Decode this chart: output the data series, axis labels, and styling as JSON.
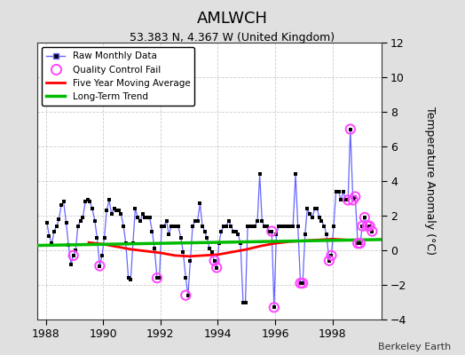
{
  "title": "AMLWCH",
  "subtitle": "53.383 N, 4.367 W (United Kingdom)",
  "ylabel": "Temperature Anomaly (°C)",
  "credit": "Berkeley Earth",
  "ylim": [
    -4,
    12
  ],
  "yticks": [
    -4,
    -2,
    0,
    2,
    4,
    6,
    8,
    10,
    12
  ],
  "xlim": [
    1987.7,
    1999.7
  ],
  "xticks": [
    1988,
    1990,
    1992,
    1994,
    1996,
    1998
  ],
  "bg_color": "#e0e0e0",
  "plot_bg_color": "#ffffff",
  "raw_color": "#6666ff",
  "raw_marker_color": "#000000",
  "qc_fail_color": "#ff44ff",
  "ma_color": "#ff0000",
  "trend_color": "#00bb00",
  "raw_x": [
    1988.04,
    1988.12,
    1988.21,
    1988.29,
    1988.38,
    1988.46,
    1988.54,
    1988.62,
    1988.71,
    1988.79,
    1988.88,
    1988.96,
    1989.04,
    1989.12,
    1989.21,
    1989.29,
    1989.38,
    1989.46,
    1989.54,
    1989.62,
    1989.71,
    1989.79,
    1989.88,
    1989.96,
    1990.04,
    1990.12,
    1990.21,
    1990.29,
    1990.38,
    1990.46,
    1990.54,
    1990.62,
    1990.71,
    1990.79,
    1990.88,
    1990.96,
    1991.04,
    1991.12,
    1991.21,
    1991.29,
    1991.38,
    1991.46,
    1991.54,
    1991.62,
    1991.71,
    1991.79,
    1991.88,
    1991.96,
    1992.04,
    1992.12,
    1992.21,
    1992.29,
    1992.38,
    1992.46,
    1992.54,
    1992.62,
    1992.71,
    1992.79,
    1992.88,
    1992.96,
    1993.04,
    1993.12,
    1993.21,
    1993.29,
    1993.38,
    1993.46,
    1993.54,
    1993.62,
    1993.71,
    1993.79,
    1993.88,
    1993.96,
    1994.04,
    1994.12,
    1994.21,
    1994.29,
    1994.38,
    1994.46,
    1994.54,
    1994.62,
    1994.71,
    1994.79,
    1994.88,
    1994.96,
    1995.04,
    1995.12,
    1995.21,
    1995.29,
    1995.38,
    1995.46,
    1995.54,
    1995.62,
    1995.71,
    1995.79,
    1995.88,
    1995.96,
    1996.04,
    1996.12,
    1996.21,
    1996.29,
    1996.38,
    1996.46,
    1996.54,
    1996.62,
    1996.71,
    1996.79,
    1996.88,
    1996.96,
    1997.04,
    1997.12,
    1997.21,
    1997.29,
    1997.38,
    1997.46,
    1997.54,
    1997.62,
    1997.71,
    1997.79,
    1997.88,
    1997.96,
    1998.04,
    1998.12,
    1998.21,
    1998.29,
    1998.38,
    1998.46,
    1998.54,
    1998.62,
    1998.71,
    1998.79,
    1998.88,
    1998.96,
    1999.04,
    1999.12,
    1999.21,
    1999.29,
    1999.38
  ],
  "raw_y": [
    1.6,
    0.8,
    0.4,
    1.1,
    1.4,
    1.8,
    2.6,
    2.8,
    1.6,
    0.3,
    -0.8,
    -0.3,
    0.0,
    1.4,
    1.7,
    1.9,
    2.8,
    2.9,
    2.8,
    2.4,
    1.7,
    0.7,
    -0.9,
    -0.3,
    0.7,
    2.3,
    2.9,
    2.1,
    2.4,
    2.3,
    2.3,
    2.1,
    1.4,
    0.4,
    -1.6,
    -1.7,
    0.4,
    2.4,
    1.9,
    1.7,
    2.1,
    1.9,
    1.9,
    1.9,
    1.1,
    0.1,
    -1.6,
    -1.6,
    1.4,
    1.4,
    1.7,
    0.9,
    1.4,
    1.4,
    1.4,
    1.4,
    0.7,
    -0.1,
    -1.6,
    -2.6,
    -0.6,
    1.4,
    1.7,
    1.7,
    2.7,
    1.4,
    1.1,
    0.7,
    0.1,
    -0.1,
    -0.6,
    -1.0,
    0.4,
    1.1,
    1.4,
    1.4,
    1.7,
    1.4,
    1.1,
    1.1,
    0.9,
    0.4,
    -3.0,
    -3.0,
    1.4,
    1.4,
    1.4,
    1.4,
    1.7,
    4.4,
    1.7,
    1.4,
    1.4,
    1.1,
    1.1,
    -3.3,
    0.9,
    1.4,
    1.4,
    1.4,
    1.4,
    1.4,
    1.4,
    1.4,
    4.4,
    1.4,
    -1.9,
    -1.9,
    0.9,
    2.4,
    2.1,
    1.9,
    2.4,
    2.4,
    1.9,
    1.7,
    1.4,
    0.9,
    -0.6,
    -0.3,
    1.4,
    3.4,
    3.4,
    2.9,
    3.4,
    2.9,
    2.9,
    7.0,
    2.9,
    3.1,
    0.4,
    0.4,
    1.4,
    1.9,
    1.4,
    1.4,
    1.1
  ],
  "qc_fail_x": [
    1988.96,
    1989.88,
    1991.88,
    1992.88,
    1993.88,
    1993.96,
    1995.88,
    1995.96,
    1996.88,
    1996.96,
    1997.88,
    1997.96,
    1998.54,
    1998.62,
    1998.71,
    1998.79,
    1998.88,
    1998.96,
    1999.04,
    1999.12,
    1999.21,
    1999.29,
    1999.38
  ],
  "qc_fail_y": [
    -0.3,
    -0.9,
    -1.6,
    -2.6,
    -0.6,
    -1.0,
    1.1,
    -3.3,
    -1.9,
    -1.9,
    -0.6,
    -0.3,
    2.9,
    7.0,
    2.9,
    3.1,
    0.4,
    0.4,
    1.4,
    1.9,
    1.4,
    1.4,
    1.1
  ],
  "ma_x": [
    1989.5,
    1990.0,
    1990.5,
    1991.0,
    1991.5,
    1992.0,
    1992.5,
    1993.0,
    1993.5,
    1994.0,
    1994.5,
    1995.0,
    1995.5,
    1996.0,
    1996.5,
    1997.0,
    1997.5,
    1998.0,
    1998.5
  ],
  "ma_y": [
    0.45,
    0.35,
    0.2,
    0.05,
    -0.05,
    -0.15,
    -0.3,
    -0.35,
    -0.3,
    -0.25,
    -0.1,
    0.05,
    0.25,
    0.4,
    0.5,
    0.55,
    0.6,
    0.65,
    0.6
  ],
  "trend_x": [
    1987.7,
    1999.7
  ],
  "trend_y": [
    0.28,
    0.62
  ],
  "legend_raw": "Raw Monthly Data",
  "legend_qc": "Quality Control Fail",
  "legend_ma": "Five Year Moving Average",
  "legend_trend": "Long-Term Trend"
}
